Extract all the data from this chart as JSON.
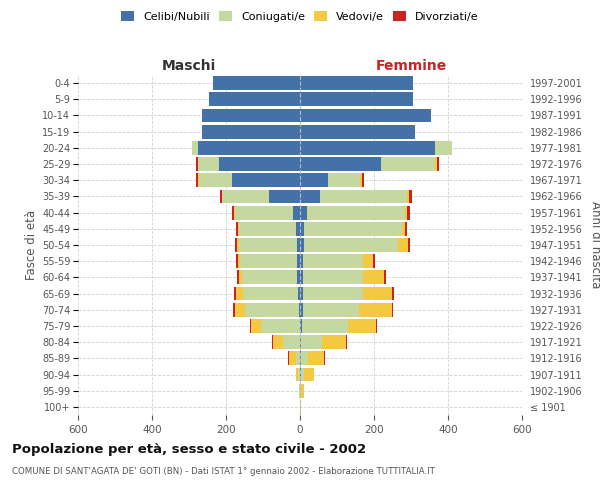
{
  "age_groups": [
    "100+",
    "95-99",
    "90-94",
    "85-89",
    "80-84",
    "75-79",
    "70-74",
    "65-69",
    "60-64",
    "55-59",
    "50-54",
    "45-49",
    "40-44",
    "35-39",
    "30-34",
    "25-29",
    "20-24",
    "15-19",
    "10-14",
    "5-9",
    "0-4"
  ],
  "birth_years": [
    "≤ 1901",
    "1902-1906",
    "1907-1911",
    "1912-1916",
    "1917-1921",
    "1922-1926",
    "1927-1931",
    "1932-1936",
    "1937-1941",
    "1942-1946",
    "1947-1951",
    "1952-1956",
    "1957-1961",
    "1962-1966",
    "1967-1971",
    "1972-1976",
    "1977-1981",
    "1982-1986",
    "1987-1991",
    "1992-1996",
    "1997-2001"
  ],
  "male": {
    "celibi": [
      0,
      0,
      0,
      0,
      0,
      0,
      3,
      5,
      8,
      8,
      8,
      10,
      18,
      85,
      185,
      220,
      275,
      265,
      265,
      245,
      235
    ],
    "coniugati": [
      1,
      2,
      5,
      12,
      45,
      105,
      145,
      150,
      148,
      155,
      158,
      155,
      158,
      125,
      88,
      55,
      18,
      0,
      0,
      0,
      0
    ],
    "vedovi": [
      0,
      1,
      5,
      18,
      28,
      28,
      28,
      18,
      8,
      5,
      4,
      2,
      2,
      2,
      2,
      2,
      0,
      0,
      0,
      0,
      0
    ],
    "divorziati": [
      0,
      0,
      0,
      2,
      2,
      2,
      5,
      5,
      5,
      5,
      5,
      7,
      7,
      5,
      5,
      4,
      0,
      0,
      0,
      0,
      0
    ]
  },
  "female": {
    "nubili": [
      0,
      0,
      2,
      3,
      4,
      5,
      8,
      8,
      8,
      8,
      10,
      10,
      18,
      55,
      75,
      220,
      365,
      310,
      355,
      305,
      305
    ],
    "coniugate": [
      1,
      4,
      8,
      18,
      55,
      125,
      152,
      162,
      162,
      162,
      255,
      265,
      265,
      235,
      88,
      145,
      45,
      0,
      0,
      0,
      0
    ],
    "vedove": [
      1,
      8,
      28,
      45,
      65,
      75,
      88,
      78,
      58,
      28,
      28,
      8,
      5,
      5,
      5,
      5,
      0,
      0,
      0,
      0,
      0
    ],
    "divorziate": [
      0,
      0,
      0,
      2,
      2,
      2,
      2,
      5,
      5,
      5,
      5,
      5,
      8,
      8,
      5,
      5,
      0,
      0,
      0,
      0,
      0
    ]
  },
  "colors": {
    "celibi": "#4472A8",
    "coniugati": "#C5D8A0",
    "vedovi": "#F5C842",
    "divorziati": "#CC2222"
  },
  "title": "Popolazione per età, sesso e stato civile - 2002",
  "subtitle": "COMUNE DI SANT'AGATA DE' GOTI (BN) - Dati ISTAT 1° gennaio 2002 - Elaborazione TUTTITALIA.IT",
  "maschi_label": "Maschi",
  "femmine_label": "Femmine",
  "ylabel_left": "Fasce di età",
  "ylabel_right": "Anni di nascita",
  "xlim": 600,
  "background_color": "#ffffff",
  "grid_color": "#cccccc"
}
